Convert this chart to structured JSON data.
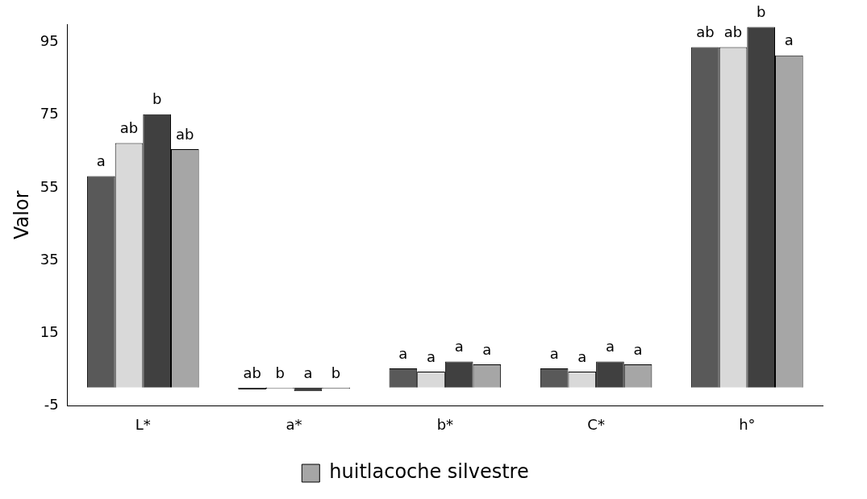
{
  "chart_data": {
    "type": "bar",
    "ylabel": "Valor",
    "categories": [
      "L*",
      "a*",
      "b*",
      "C*",
      "h°"
    ],
    "series": [
      {
        "name": null,
        "color": "#595959",
        "values": [
          58.2,
          -0.5,
          5.3,
          5.3,
          93.7
        ],
        "value_labels": [
          "a",
          "ab",
          "a",
          "a",
          "ab"
        ]
      },
      {
        "name": null,
        "color": "#d9d9d9",
        "values": [
          67.3,
          -0.3,
          4.4,
          4.4,
          93.7
        ],
        "value_labels": [
          "ab",
          "b",
          "a",
          "a",
          "ab"
        ]
      },
      {
        "name": null,
        "color": "#404040",
        "values": [
          75.2,
          -1,
          7.2,
          7.2,
          99.2
        ],
        "value_labels": [
          "b",
          "a",
          "a",
          "a",
          "b"
        ]
      },
      {
        "name": "huitlacoche silvestre",
        "color": "#a6a6a6",
        "values": [
          65.6,
          -0.3,
          6.4,
          6.4,
          91.4
        ],
        "value_labels": [
          "ab",
          "b",
          "a",
          "a",
          "a"
        ]
      }
    ],
    "ylim": [
      -5,
      100
    ],
    "yticks": [
      -5,
      15,
      35,
      55,
      75,
      95
    ],
    "grid": false,
    "legend": "bottom"
  }
}
